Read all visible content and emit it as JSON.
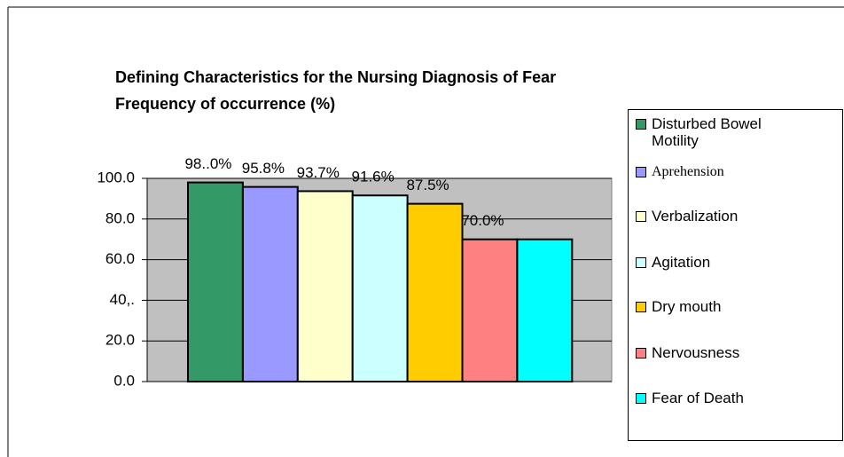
{
  "chart_data": {
    "type": "bar",
    "title": "Defining Characteristics for the Nursing Diagnosis of Fear",
    "subtitle": "Frequency of occurrence (%)",
    "categories": [
      "Disturbed Bowel Motility",
      "Aprehension",
      "Verbalization",
      "Agitation",
      "Dry mouth",
      "Nervousness",
      "Fear of Death"
    ],
    "values": [
      98.0,
      95.8,
      93.7,
      91.6,
      87.5,
      70.0,
      70.0
    ],
    "value_labels": [
      "98..0%",
      "95.8%",
      "93.7%",
      "91.6%",
      "87.5%",
      "70.0%",
      null
    ],
    "colors": [
      "#339966",
      "#9999ff",
      "#ffffcc",
      "#ccffff",
      "#ffcc00",
      "#ff8080",
      "#00ffff"
    ],
    "ylim": [
      0,
      100
    ],
    "yticks": [
      {
        "value": 0,
        "label": "0.0"
      },
      {
        "value": 20,
        "label": "20.0"
      },
      {
        "value": 40,
        "label": "40,."
      },
      {
        "value": 60,
        "label": "60.0"
      },
      {
        "value": 80,
        "label": "80.0"
      },
      {
        "value": 100,
        "label": "100.0"
      }
    ],
    "grid": true,
    "legend": "right"
  }
}
